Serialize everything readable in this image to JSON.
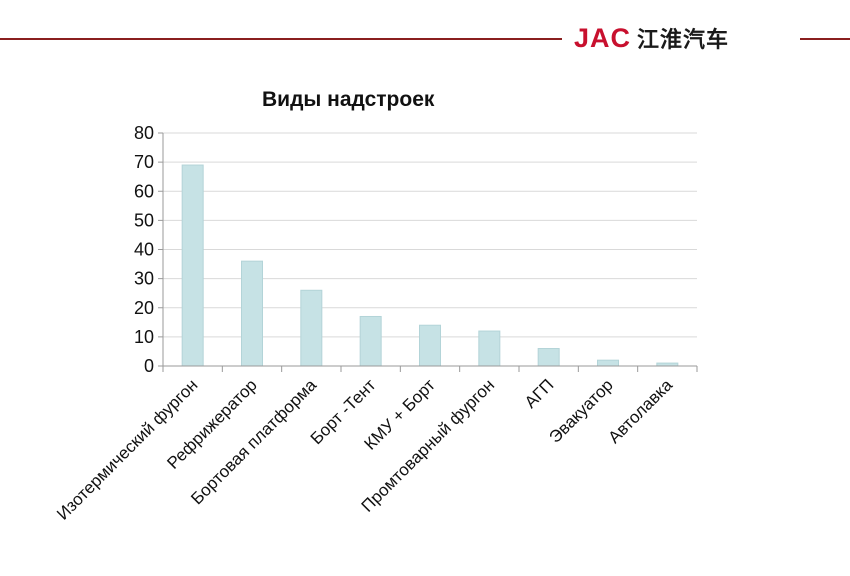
{
  "header": {
    "brand_latin": "JAC",
    "brand_cjk": "江淮汽车",
    "line_color": "#8a1f1f",
    "brand_color": "#c8102e"
  },
  "chart_data": {
    "type": "bar",
    "title": "Виды надстроек",
    "xlabel": "",
    "ylabel": "",
    "categories": [
      "Изотермический фургон",
      "Рефрижератор",
      "Бортовая платформа",
      "Борт -Тент",
      "КМУ + Борт",
      "Промтоварный фургон",
      "АГП",
      "Эвакуатор",
      "Автолавка"
    ],
    "values": [
      69,
      36,
      26,
      17,
      14,
      12,
      6,
      2,
      1
    ],
    "ylim": [
      0,
      80
    ],
    "yticks": [
      0,
      10,
      20,
      30,
      40,
      50,
      60,
      70,
      80
    ],
    "grid": true,
    "legend": "none",
    "bar_color": "#c6e2e5",
    "bar_edge_color": "#b3d4d8",
    "grid_color": "#d9d9d9"
  }
}
